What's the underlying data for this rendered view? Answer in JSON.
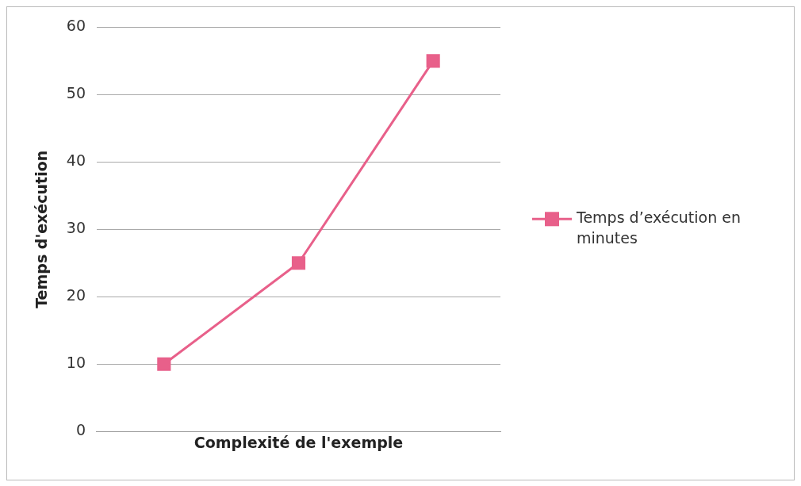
{
  "chart_data": {
    "type": "line",
    "xlabel": "Complexité de l'exemple",
    "ylabel": "Temps d'exécution",
    "categories": [
      null,
      null,
      null
    ],
    "series": [
      {
        "name": "Temps d’exécution en minutes",
        "color": "#e8608a",
        "values": [
          10,
          25,
          55
        ]
      }
    ],
    "ylim": [
      0,
      60
    ],
    "yticks": [
      0,
      10,
      20,
      30,
      40,
      50,
      60
    ],
    "grid": "y",
    "legend": "right",
    "marker": "square",
    "line_style": "solid",
    "tick_labels": "y"
  }
}
